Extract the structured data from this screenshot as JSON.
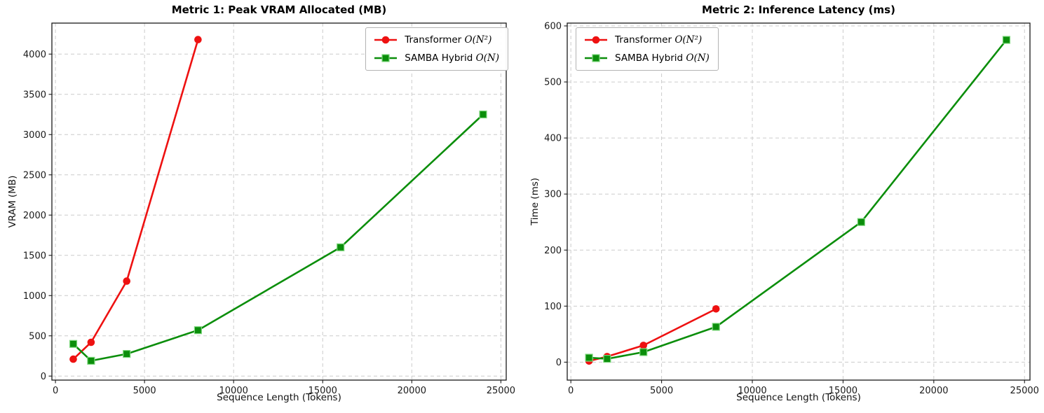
{
  "chart_data": [
    {
      "type": "line",
      "title": "Metric 1: Peak VRAM Allocated (MB)",
      "xlabel": "Sequence Length (Tokens)",
      "ylabel": "VRAM (MB)",
      "xlim": [
        -200,
        25300
      ],
      "ylim": [
        -50,
        4385
      ],
      "xticks": [
        0,
        5000,
        10000,
        15000,
        20000,
        25000
      ],
      "yticks": [
        0,
        500,
        1000,
        1500,
        2000,
        2500,
        3000,
        3500,
        4000
      ],
      "grid": true,
      "legend_position": "upper-right",
      "series": [
        {
          "name": "Transformer O(N²)",
          "label_text": "Transformer ",
          "label_math": "O(N²)",
          "color": "#ee1111",
          "marker": "circle",
          "x": [
            1000,
            2000,
            4000,
            8000
          ],
          "y": [
            210,
            420,
            1180,
            4180
          ]
        },
        {
          "name": "SAMBA Hybrid O(N)",
          "label_text": "SAMBA Hybrid ",
          "label_math": "O(N)",
          "color": "#0b8e0b",
          "marker": "square",
          "x": [
            1000,
            2000,
            4000,
            8000,
            16000,
            24000
          ],
          "y": [
            400,
            190,
            275,
            570,
            1600,
            3250
          ]
        }
      ]
    },
    {
      "type": "line",
      "title": "Metric 2: Inference Latency (ms)",
      "xlabel": "Sequence Length (Tokens)",
      "ylabel": "Time (ms)",
      "xlim": [
        -200,
        25300
      ],
      "ylim": [
        -32,
        605
      ],
      "xticks": [
        0,
        5000,
        10000,
        15000,
        20000,
        25000
      ],
      "yticks": [
        0,
        100,
        200,
        300,
        400,
        500,
        600
      ],
      "grid": true,
      "legend_position": "upper-left",
      "series": [
        {
          "name": "Transformer O(N²)",
          "label_text": "Transformer ",
          "label_math": "O(N²)",
          "color": "#ee1111",
          "marker": "circle",
          "x": [
            1000,
            2000,
            4000,
            8000
          ],
          "y": [
            2,
            10,
            30,
            95
          ]
        },
        {
          "name": "SAMBA Hybrid O(N)",
          "label_text": "SAMBA Hybrid ",
          "label_math": "O(N)",
          "color": "#0b8e0b",
          "marker": "square",
          "x": [
            1000,
            2000,
            4000,
            8000,
            16000,
            24000
          ],
          "y": [
            8,
            6,
            18,
            63,
            250,
            575
          ]
        }
      ]
    }
  ]
}
